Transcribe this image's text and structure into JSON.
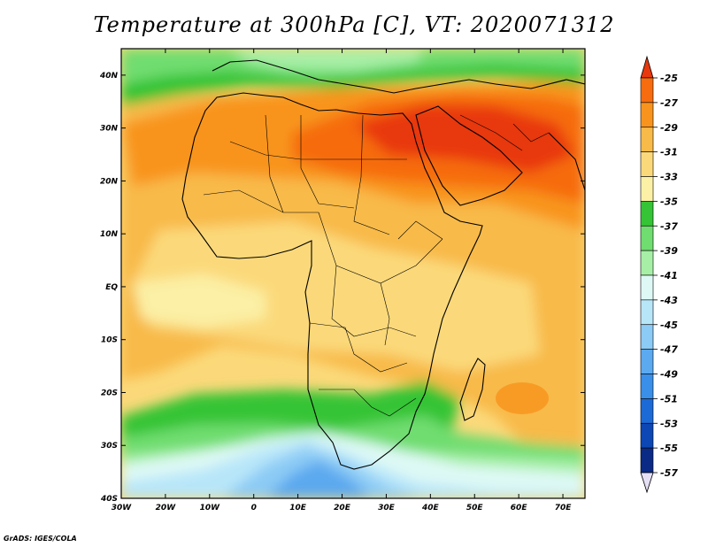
{
  "title": "Temperature at 300hPa [C], VT: 2020071312",
  "credit": "GrADS: IGES/COLA",
  "map": {
    "region": "Africa and surrounding oceans",
    "lon_range": [
      -30,
      75
    ],
    "lat_range": [
      -40,
      45
    ],
    "lon_ticks": [
      "30W",
      "20W",
      "10W",
      "0",
      "10E",
      "20E",
      "30E",
      "40E",
      "50E",
      "60E",
      "70E"
    ],
    "lat_ticks": [
      "40N",
      "30N",
      "20N",
      "10N",
      "EQ",
      "10S",
      "20S",
      "30S",
      "40S"
    ]
  },
  "colorbar": {
    "labels": [
      "-25",
      "-27",
      "-29",
      "-31",
      "-33",
      "-35",
      "-37",
      "-39",
      "-41",
      "-43",
      "-45",
      "-47",
      "-49",
      "-51",
      "-53",
      "-55",
      "-57"
    ],
    "colors": [
      "#e8380e",
      "#f66c0e",
      "#f8941d",
      "#f8ba48",
      "#fbd97a",
      "#fbf0a6",
      "#35c435",
      "#6fdd6f",
      "#a7efa7",
      "#def9f5",
      "#b8e6f9",
      "#8ccbf5",
      "#5ba9ef",
      "#3a8fe9",
      "#1c6ad6",
      "#0c47b5",
      "#0a2a85",
      "#08156b"
    ]
  }
}
